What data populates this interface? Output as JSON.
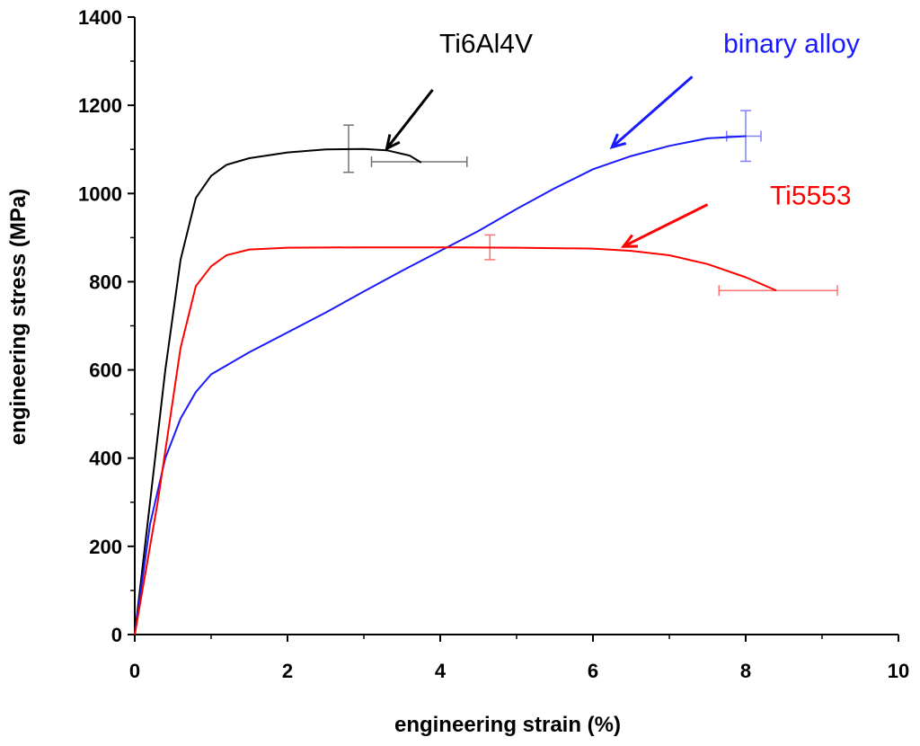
{
  "chart_data": {
    "type": "line",
    "title": "",
    "xlabel": "engineering strain (%)",
    "ylabel": "engineering stress (MPa)",
    "xlim": [
      0,
      10
    ],
    "ylim": [
      0,
      1400
    ],
    "xticks": [
      "0",
      "2",
      "4",
      "6",
      "8",
      "10"
    ],
    "yticks": [
      "0",
      "200",
      "400",
      "600",
      "800",
      "1000",
      "1200",
      "1400"
    ],
    "grid": false,
    "series": [
      {
        "name": "Ti6Al4V",
        "color": "#000000",
        "points": [
          [
            0,
            0
          ],
          [
            0.2,
            300
          ],
          [
            0.4,
            600
          ],
          [
            0.6,
            850
          ],
          [
            0.8,
            990
          ],
          [
            1.0,
            1040
          ],
          [
            1.2,
            1065
          ],
          [
            1.5,
            1080
          ],
          [
            2.0,
            1093
          ],
          [
            2.5,
            1100
          ],
          [
            3.0,
            1101
          ],
          [
            3.3,
            1098
          ],
          [
            3.6,
            1086
          ],
          [
            3.75,
            1070
          ]
        ],
        "error_bars": [
          {
            "x": 2.8,
            "y": 1100,
            "axis": "y",
            "low": 1048,
            "high": 1155
          },
          {
            "x": 3.75,
            "y": 1072,
            "axis": "x",
            "low": 3.1,
            "high": 4.35
          }
        ]
      },
      {
        "name": "binary alloy",
        "color": "#1a1aff",
        "points": [
          [
            0,
            0
          ],
          [
            0.2,
            250
          ],
          [
            0.4,
            400
          ],
          [
            0.6,
            490
          ],
          [
            0.8,
            550
          ],
          [
            1.0,
            590
          ],
          [
            1.5,
            640
          ],
          [
            2.0,
            685
          ],
          [
            2.5,
            730
          ],
          [
            3.0,
            778
          ],
          [
            3.5,
            825
          ],
          [
            4.0,
            870
          ],
          [
            4.5,
            915
          ],
          [
            5.0,
            965
          ],
          [
            5.5,
            1012
          ],
          [
            6.0,
            1055
          ],
          [
            6.5,
            1085
          ],
          [
            7.0,
            1108
          ],
          [
            7.5,
            1125
          ],
          [
            8.0,
            1130
          ]
        ],
        "error_bars": [
          {
            "x": 8.0,
            "y": 1130,
            "axis": "y",
            "low": 1073,
            "high": 1188
          },
          {
            "x": 8.0,
            "y": 1130,
            "axis": "x",
            "low": 7.75,
            "high": 8.2
          }
        ]
      },
      {
        "name": "Ti5553",
        "color": "#ff0000",
        "points": [
          [
            0,
            0
          ],
          [
            0.3,
            300
          ],
          [
            0.6,
            650
          ],
          [
            0.8,
            790
          ],
          [
            1.0,
            835
          ],
          [
            1.2,
            860
          ],
          [
            1.5,
            873
          ],
          [
            2.0,
            877
          ],
          [
            3.0,
            878
          ],
          [
            4.0,
            878
          ],
          [
            5.0,
            877
          ],
          [
            6.0,
            875
          ],
          [
            6.5,
            870
          ],
          [
            7.0,
            860
          ],
          [
            7.5,
            840
          ],
          [
            8.0,
            810
          ],
          [
            8.4,
            780
          ]
        ],
        "error_bars": [
          {
            "x": 4.65,
            "y": 877,
            "axis": "y",
            "low": 850,
            "high": 906
          },
          {
            "x": 8.4,
            "y": 780,
            "axis": "x",
            "low": 7.65,
            "high": 9.2
          }
        ]
      }
    ],
    "annotations": [
      {
        "text": "Ti6Al4V",
        "color": "#000000",
        "label_at": [
          4.6,
          1320
        ],
        "arrow_from": [
          3.9,
          1235
        ],
        "arrow_to": [
          3.3,
          1102
        ]
      },
      {
        "text": "binary alloy",
        "color": "#1a1aff",
        "label_at": [
          8.6,
          1320
        ],
        "arrow_from": [
          7.3,
          1265
        ],
        "arrow_to": [
          6.25,
          1105
        ]
      },
      {
        "text": "Ti5553",
        "color": "#ff0000",
        "label_at": [
          8.85,
          975
        ],
        "arrow_from": [
          7.5,
          975
        ],
        "arrow_to": [
          6.4,
          880
        ]
      }
    ]
  }
}
